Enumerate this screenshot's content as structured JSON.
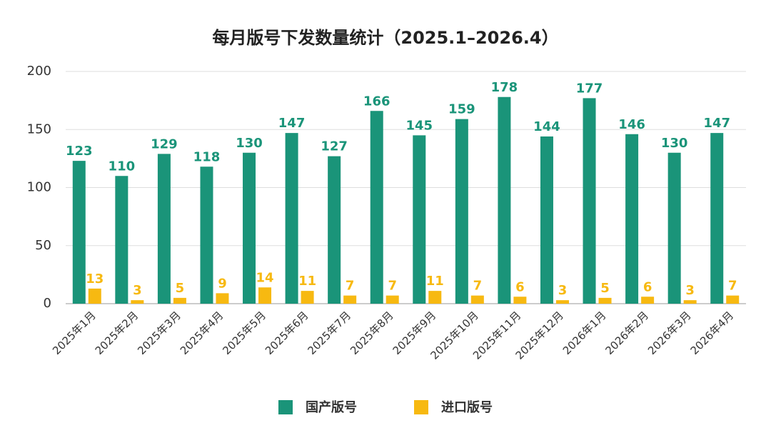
{
  "chart_data": {
    "type": "bar",
    "title": "每月版号下发数量统计（2025.1–2026.4）",
    "categories": [
      "2025年1月",
      "2025年2月",
      "2025年3月",
      "2025年4月",
      "2025年5月",
      "2025年6月",
      "2025年7月",
      "2025年8月",
      "2025年9月",
      "2025年10月",
      "2025年11月",
      "2025年12月",
      "2026年1月",
      "2026年2月",
      "2026年3月",
      "2026年4月"
    ],
    "series": [
      {
        "name": "国产版号",
        "color": "#1a9479",
        "values": [
          123,
          110,
          129,
          118,
          130,
          147,
          127,
          166,
          145,
          159,
          178,
          144,
          177,
          146,
          130,
          147
        ]
      },
      {
        "name": "进口版号",
        "color": "#f7b911",
        "values": [
          13,
          3,
          5,
          9,
          14,
          11,
          7,
          7,
          11,
          7,
          6,
          3,
          5,
          6,
          3,
          7
        ]
      }
    ],
    "ylim": [
      0,
      200
    ],
    "yticks": [
      0,
      50,
      100,
      150,
      200
    ],
    "grid": true,
    "legend": "bottom"
  }
}
